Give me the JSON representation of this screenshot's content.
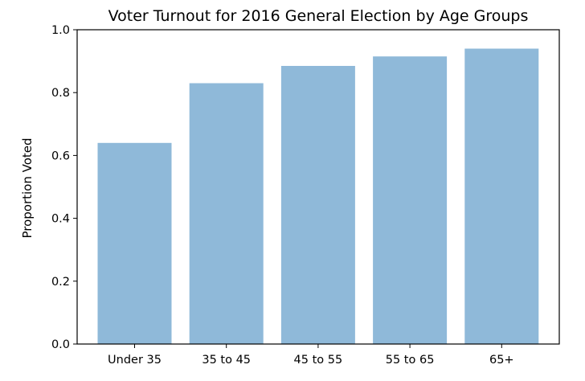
{
  "chart_data": {
    "type": "bar",
    "title": "Voter Turnout for 2016 General Election by Age Groups",
    "xlabel": "",
    "ylabel": "Proportion Voted",
    "categories": [
      "Under 35",
      "35 to 45",
      "45 to 55",
      "55 to 65",
      "65+"
    ],
    "values": [
      0.64,
      0.83,
      0.885,
      0.915,
      0.94
    ],
    "ylim": [
      0,
      1.0
    ],
    "yticks": [
      "0.0",
      "0.2",
      "0.4",
      "0.6",
      "0.8",
      "1.0"
    ],
    "grid": false,
    "legend": "none",
    "bar_color": "#8fb9d9",
    "axis_color": "#000000"
  }
}
